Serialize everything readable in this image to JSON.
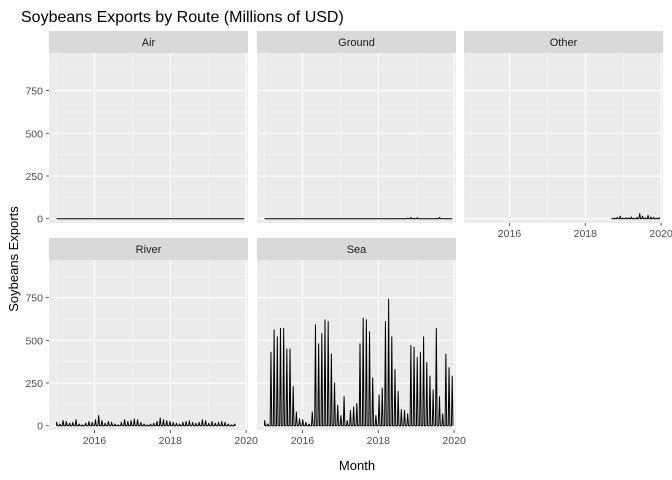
{
  "chart_data": {
    "type": "line",
    "title": "Soybeans Exports by Route (Millions of USD)",
    "xlabel": "Month",
    "ylabel": "Soybeans Exports",
    "xlim": [
      2014.8,
      2020.05
    ],
    "ylim": [
      -25,
      970
    ],
    "x_ticks": [
      2016,
      2018,
      2020
    ],
    "y_ticks": [
      0,
      250,
      500,
      750
    ],
    "x_tick_labels": [
      "2016",
      "2018",
      "2020"
    ],
    "y_tick_labels": [
      "0",
      "250",
      "500",
      "750"
    ],
    "grid": true,
    "facets": [
      {
        "name": "Air",
        "x_start": 2015.0,
        "x_end": 2019.95,
        "values": [
          0,
          0,
          0,
          0,
          0,
          0,
          0,
          0,
          0,
          0,
          0,
          0,
          0,
          0,
          0,
          0,
          0,
          0,
          0,
          0,
          0,
          0,
          0,
          0,
          0,
          0,
          0,
          0,
          0,
          0,
          0,
          0,
          0,
          0,
          0,
          0,
          0,
          0,
          0,
          0,
          0,
          0,
          0,
          0,
          0,
          0,
          0,
          0,
          0,
          0,
          0,
          0,
          0,
          0,
          0,
          0,
          0,
          0,
          0,
          0
        ]
      },
      {
        "name": "Ground",
        "x_start": 2015.0,
        "x_end": 2019.95,
        "values": [
          0,
          0,
          0,
          0,
          0,
          0,
          0,
          0,
          0,
          0,
          0,
          0,
          0,
          0,
          0,
          0,
          0,
          0,
          0,
          0,
          0,
          0,
          0,
          0,
          0,
          0,
          0,
          0,
          0,
          0,
          0,
          0,
          0,
          0,
          0,
          0,
          0,
          0,
          0,
          0,
          0,
          1,
          0,
          0,
          0,
          3,
          8,
          2,
          6,
          0,
          0,
          0,
          0,
          0,
          2,
          8,
          1,
          0,
          0,
          0
        ]
      },
      {
        "name": "Other",
        "x_start": 2018.7,
        "x_end": 2019.95,
        "values": [
          2,
          4,
          8,
          15,
          3,
          6,
          5,
          10,
          2,
          8,
          30,
          15,
          5,
          20,
          10,
          8,
          3,
          6
        ]
      },
      {
        "name": "River",
        "x_start": 2015.0,
        "x_end": 2019.7,
        "values": [
          20,
          10,
          30,
          25,
          15,
          20,
          35,
          10,
          5,
          15,
          25,
          20,
          35,
          60,
          30,
          15,
          25,
          20,
          10,
          5,
          20,
          35,
          25,
          30,
          40,
          35,
          20,
          10,
          5,
          10,
          15,
          25,
          45,
          35,
          30,
          25,
          20,
          15,
          10,
          20,
          25,
          30,
          20,
          15,
          20,
          35,
          30,
          15,
          25,
          15,
          20,
          25,
          20,
          10,
          5,
          10
        ]
      },
      {
        "name": "Sea",
        "x_start": 2015.0,
        "x_end": 2019.95,
        "values": [
          30,
          10,
          430,
          560,
          520,
          570,
          570,
          450,
          450,
          230,
          80,
          40,
          35,
          20,
          10,
          80,
          590,
          480,
          540,
          620,
          610,
          420,
          250,
          120,
          60,
          170,
          30,
          90,
          110,
          130,
          480,
          630,
          620,
          550,
          280,
          60,
          180,
          220,
          610,
          740,
          520,
          330,
          200,
          95,
          90,
          70,
          470,
          460,
          400,
          430,
          520,
          370,
          290,
          210,
          570,
          170,
          70,
          420,
          340,
          290
        ]
      }
    ]
  }
}
